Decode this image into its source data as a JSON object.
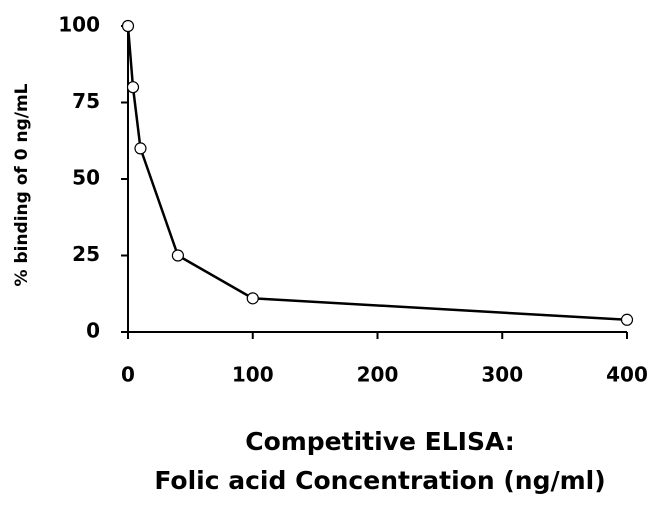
{
  "chart_data": {
    "type": "line",
    "x_label": [
      "Competitive ELISA:",
      "Folic acid Concentration (ng/ml)"
    ],
    "y_label": "% binding of 0 ng/mL",
    "x": [
      0,
      4,
      10,
      40,
      100,
      400
    ],
    "series": [
      {
        "color": "#000000",
        "values": [
          100,
          80,
          60,
          25,
          11,
          4
        ]
      }
    ],
    "xlim": [
      0,
      400
    ],
    "xticks": [
      0,
      100,
      200,
      300,
      400
    ],
    "ylim": [
      0,
      100
    ],
    "yticks": [
      0,
      25,
      50,
      75,
      100
    ],
    "grid": false
  }
}
